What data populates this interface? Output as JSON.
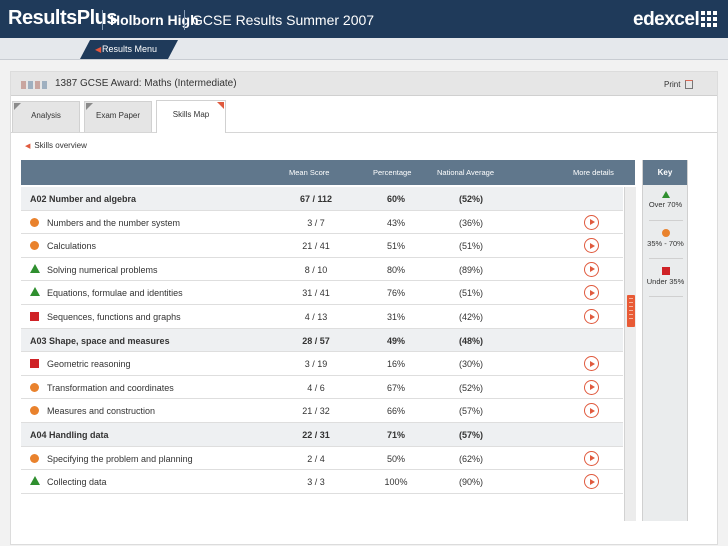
{
  "header": {
    "brand": "ResultsPlus",
    "school": "Holborn High",
    "results_title": "GCSE Results Summer 2007",
    "logo": "edexcel",
    "colors": {
      "bar": "#1f3a5a",
      "accent": "#e05a3e"
    }
  },
  "nav": {
    "results_menu": "Results Menu"
  },
  "award": {
    "title": "1387 GCSE Award: Maths (Intermediate)",
    "print": "Print"
  },
  "tabs": [
    {
      "label": "Analysis"
    },
    {
      "label": "Exam Paper"
    },
    {
      "label": "Skills Map",
      "active": true
    }
  ],
  "breadcrumb": {
    "label": "Skills overview"
  },
  "table": {
    "headers": {
      "mean_score": "Mean Score",
      "percentage": "Percentage",
      "national_average": "National Average",
      "more_details": "More details"
    },
    "rows": [
      {
        "type": "section",
        "label": "A02 Number and algebra",
        "score": "67 / 112",
        "pct": "60%",
        "nat": "(52%)"
      },
      {
        "type": "skill",
        "icon": "circle",
        "label": "Numbers and the number system",
        "score": "3 / 7",
        "pct": "43%",
        "nat": "(36%)"
      },
      {
        "type": "skill",
        "icon": "circle",
        "label": "Calculations",
        "score": "21 / 41",
        "pct": "51%",
        "nat": "(51%)"
      },
      {
        "type": "skill",
        "icon": "triangle",
        "label": "Solving numerical problems",
        "score": "8 / 10",
        "pct": "80%",
        "nat": "(89%)"
      },
      {
        "type": "skill",
        "icon": "triangle",
        "label": "Equations, formulae and identities",
        "score": "31 / 41",
        "pct": "76%",
        "nat": "(51%)"
      },
      {
        "type": "skill",
        "icon": "square",
        "label": "Sequences, functions and graphs",
        "score": "4 / 13",
        "pct": "31%",
        "nat": "(42%)"
      },
      {
        "type": "section",
        "label": "A03 Shape, space and measures",
        "score": "28 / 57",
        "pct": "49%",
        "nat": "(48%)"
      },
      {
        "type": "skill",
        "icon": "square",
        "label": "Geometric reasoning",
        "score": "3 / 19",
        "pct": "16%",
        "nat": "(30%)"
      },
      {
        "type": "skill",
        "icon": "circle",
        "label": "Transformation and coordinates",
        "score": "4 / 6",
        "pct": "67%",
        "nat": "(52%)"
      },
      {
        "type": "skill",
        "icon": "circle",
        "label": "Measures and construction",
        "score": "21 / 32",
        "pct": "66%",
        "nat": "(57%)"
      },
      {
        "type": "section",
        "label": "A04 Handling data",
        "score": "22 / 31",
        "pct": "71%",
        "nat": "(57%)"
      },
      {
        "type": "skill",
        "icon": "circle",
        "label": "Specifying the problem and planning",
        "score": "2 / 4",
        "pct": "50%",
        "nat": "(62%)"
      },
      {
        "type": "skill",
        "icon": "triangle",
        "label": "Collecting data",
        "score": "3 / 3",
        "pct": "100%",
        "nat": "(90%)"
      }
    ]
  },
  "key": {
    "title": "Key",
    "items": [
      {
        "icon": "triangle",
        "label": "Over 70%"
      },
      {
        "icon": "circle",
        "label": "35% - 70%"
      },
      {
        "icon": "square",
        "label": "Under 35%"
      }
    ]
  }
}
